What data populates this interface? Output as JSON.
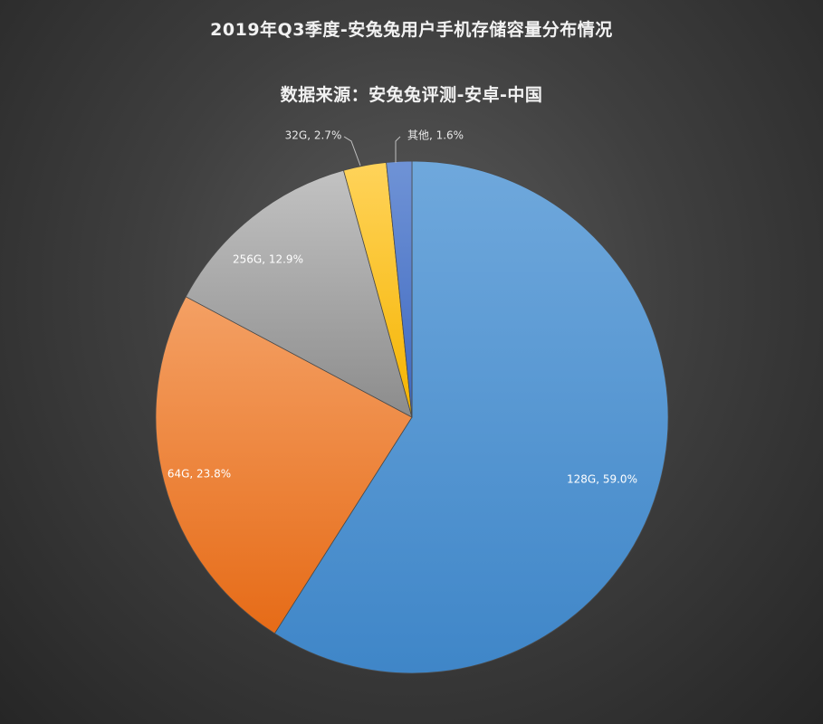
{
  "chart_data": {
    "type": "pie",
    "title": "2019年Q3季度-安兔兔用户手机存储容量分布情况",
    "subtitle": "数据来源：安兔兔评测-安卓-中国",
    "slices": [
      {
        "label": "128G",
        "percent_text": "59.0%",
        "value": 59.0,
        "color_top": "#6fa8dc",
        "color_bottom": "#3f86c8",
        "label_color": "#ffffff"
      },
      {
        "label": "64G",
        "percent_text": "23.8%",
        "value": 23.8,
        "color_top": "#f4a064",
        "color_bottom": "#e66b17",
        "label_color": "#ffffff"
      },
      {
        "label": "256G",
        "percent_text": "12.9%",
        "value": 12.9,
        "color_top": "#c2c2c2",
        "color_bottom": "#8c8c8c",
        "label_color": "#ffffff"
      },
      {
        "label": "32G",
        "percent_text": "2.7%",
        "value": 2.7,
        "color_top": "#ffd35a",
        "color_bottom": "#f5b400",
        "label_color": "#e8e8e8"
      },
      {
        "label": "其他",
        "percent_text": "1.6%",
        "value": 1.6,
        "color_top": "#6f93d6",
        "color_bottom": "#3e68c0",
        "label_color": "#e8e8e8"
      }
    ],
    "legend": "none"
  }
}
